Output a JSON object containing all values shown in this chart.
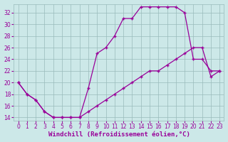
{
  "line1_x": [
    0,
    1,
    2,
    3,
    4,
    5,
    6,
    7,
    8,
    9,
    10,
    11,
    12,
    13,
    14,
    15,
    16,
    17,
    18,
    19,
    20,
    21,
    22,
    23
  ],
  "line1_y": [
    20,
    18,
    17,
    15,
    14,
    14,
    14,
    14,
    19,
    25,
    26,
    28,
    31,
    31,
    33,
    33,
    33,
    33,
    33,
    32,
    24,
    24,
    22,
    22
  ],
  "line2_x": [
    0,
    1,
    2,
    3,
    4,
    5,
    6,
    7,
    8,
    9,
    10,
    11,
    12,
    13,
    14,
    15,
    16,
    17,
    18,
    19,
    20,
    21,
    22,
    23
  ],
  "line2_y": [
    20,
    18,
    17,
    15,
    14,
    14,
    14,
    14,
    15,
    16,
    17,
    18,
    19,
    20,
    21,
    22,
    22,
    23,
    24,
    25,
    26,
    26,
    21,
    22
  ],
  "line_color": "#990099",
  "marker": "+",
  "bg_color": "#cce8e8",
  "grid_color": "#99bbbb",
  "xlabel": "Windchill (Refroidissement éolien,°C)",
  "ylabel": "",
  "xlim": [
    -0.5,
    23.5
  ],
  "ylim": [
    13.5,
    33.5
  ],
  "yticks": [
    14,
    16,
    18,
    20,
    22,
    24,
    26,
    28,
    30,
    32
  ],
  "xticks": [
    0,
    1,
    2,
    3,
    4,
    5,
    6,
    7,
    8,
    9,
    10,
    11,
    12,
    13,
    14,
    15,
    16,
    17,
    18,
    19,
    20,
    21,
    22,
    23
  ],
  "xlabel_fontsize": 6.5,
  "tick_fontsize": 5.5,
  "linewidth": 0.9,
  "markersize": 3.5,
  "markeredgewidth": 1.0
}
